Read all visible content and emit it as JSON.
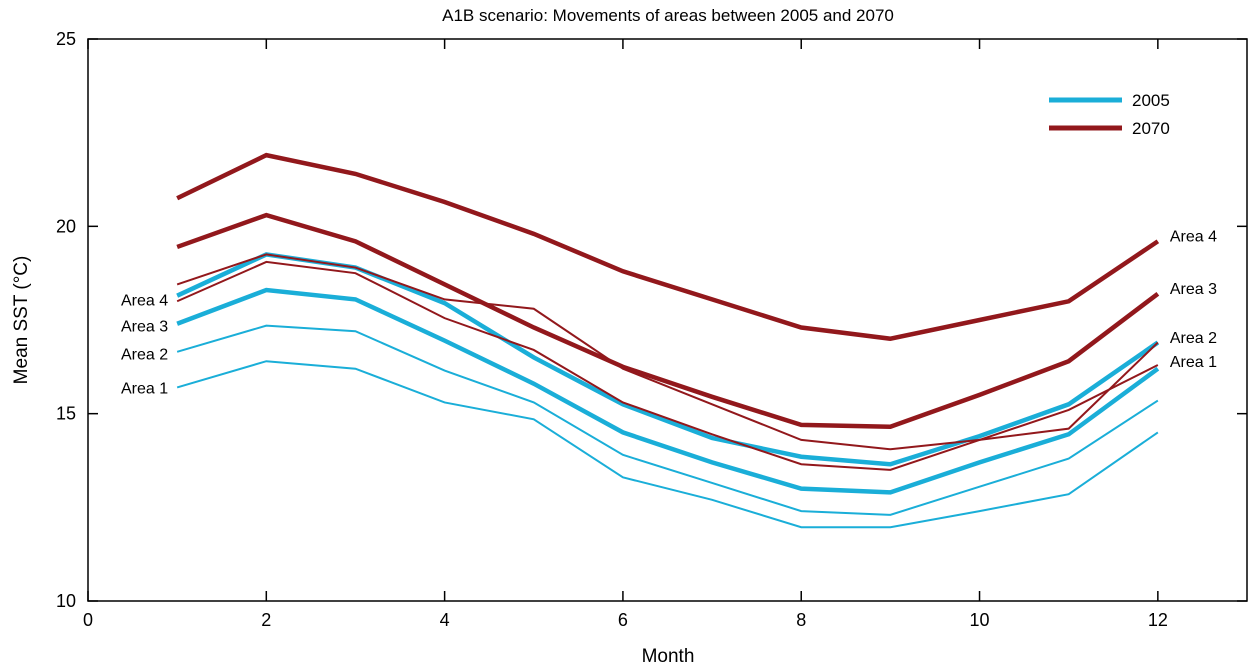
{
  "chart_data": {
    "type": "line",
    "title": "A1B scenario: Movements of areas between 2005 and 2070",
    "xlabel": "Month",
    "ylabel": "Mean SST (°C)",
    "xlim": [
      0,
      13
    ],
    "ylim": [
      10,
      25
    ],
    "xticks": [
      0,
      2,
      4,
      6,
      8,
      10,
      12
    ],
    "yticks": [
      10,
      15,
      20,
      25
    ],
    "grid": false,
    "legend_position": "top-right",
    "legend": [
      {
        "label": "2005",
        "color": "#1aaed8"
      },
      {
        "label": "2070",
        "color": "#92181c"
      }
    ],
    "x": [
      1,
      2,
      3,
      4,
      5,
      6,
      7,
      8,
      9,
      10,
      11,
      12
    ],
    "series": [
      {
        "name": "2005",
        "area": "Area 1",
        "color": "#1aaed8",
        "weight": "thin",
        "values": [
          15.7,
          16.4,
          16.2,
          15.3,
          14.85,
          13.3,
          12.7,
          11.97,
          11.97,
          12.4,
          12.85,
          14.5
        ]
      },
      {
        "name": "2005",
        "area": "Area 2",
        "color": "#1aaed8",
        "weight": "thin",
        "values": [
          16.65,
          17.35,
          17.2,
          16.15,
          15.3,
          13.9,
          13.15,
          12.4,
          12.3,
          13.05,
          13.8,
          15.35
        ]
      },
      {
        "name": "2005",
        "area": "Area 3",
        "color": "#1aaed8",
        "weight": "thick",
        "values": [
          17.4,
          18.3,
          18.05,
          16.95,
          15.8,
          14.5,
          13.7,
          13.0,
          12.9,
          13.7,
          14.45,
          16.2
        ]
      },
      {
        "name": "2005",
        "area": "Area 4",
        "color": "#1aaed8",
        "weight": "thick",
        "values": [
          18.15,
          19.25,
          18.9,
          17.95,
          16.5,
          15.25,
          14.35,
          13.85,
          13.65,
          14.4,
          15.25,
          16.9
        ]
      },
      {
        "name": "2070",
        "area": "Area 1",
        "color": "#92181c",
        "weight": "thin",
        "values": [
          18.0,
          19.05,
          18.75,
          17.55,
          16.7,
          15.3,
          14.45,
          13.65,
          13.5,
          14.3,
          15.1,
          16.3
        ]
      },
      {
        "name": "2070",
        "area": "Area 2",
        "color": "#92181c",
        "weight": "thin",
        "values": [
          18.45,
          19.25,
          18.9,
          18.05,
          17.8,
          16.2,
          15.25,
          14.3,
          14.05,
          14.3,
          14.6,
          16.9
        ]
      },
      {
        "name": "2070",
        "area": "Area 3",
        "color": "#92181c",
        "weight": "thick",
        "values": [
          19.45,
          20.3,
          19.6,
          18.45,
          17.3,
          16.25,
          15.45,
          14.7,
          14.65,
          15.5,
          16.4,
          18.2
        ]
      },
      {
        "name": "2070",
        "area": "Area 4",
        "color": "#92181c",
        "weight": "thick",
        "values": [
          20.75,
          21.9,
          21.4,
          20.65,
          19.8,
          18.8,
          18.05,
          17.3,
          17.0,
          17.5,
          18.0,
          19.6
        ]
      }
    ],
    "annotations": {
      "left": [
        {
          "text": "Area 4",
          "x": 1,
          "y": 18.05
        },
        {
          "text": "Area 3",
          "x": 1,
          "y": 17.35
        },
        {
          "text": "Area 2",
          "x": 1,
          "y": 16.6
        },
        {
          "text": "Area 1",
          "x": 1,
          "y": 15.7
        }
      ],
      "right": [
        {
          "text": "Area 4",
          "x": 12,
          "y": 19.75
        },
        {
          "text": "Area 3",
          "x": 12,
          "y": 18.35
        },
        {
          "text": "Area 2",
          "x": 12,
          "y": 17.05
        },
        {
          "text": "Area 1",
          "x": 12,
          "y": 16.4
        }
      ]
    }
  }
}
